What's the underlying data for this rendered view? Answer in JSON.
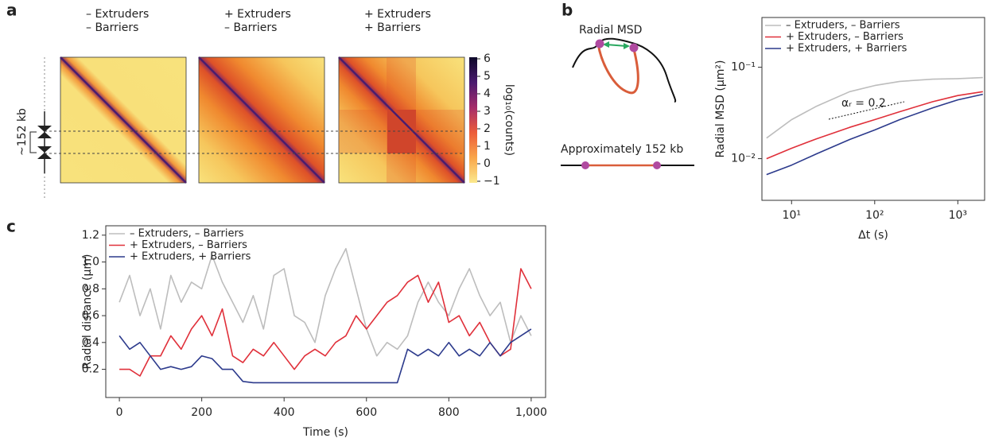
{
  "panel_labels": [
    "a",
    "b",
    "c"
  ],
  "diagram": {
    "title": "Radial MSD",
    "caption": "Approximately 152 kb"
  },
  "chart_data": [
    {
      "type": "heatmap",
      "maps": [
        {
          "title": [
            "– Extruders",
            "– Barriers"
          ]
        },
        {
          "title": [
            "+ Extruders",
            "– Barriers"
          ]
        },
        {
          "title": [
            "+ Extruders",
            "+ Barriers"
          ]
        }
      ],
      "side_label": "~152 kb",
      "colorbar": {
        "label": "log₁₀(counts)",
        "lim": [
          -1,
          6
        ],
        "ticks": [
          {
            "value": -1,
            "label": "−1"
          },
          0,
          1,
          2,
          3,
          4,
          5,
          6
        ]
      }
    },
    {
      "type": "line",
      "xscale": "log",
      "yscale": "log",
      "legend": "upper left",
      "xlabel": "Δt (s)",
      "ylabel": "Radial MSD (µm²)",
      "annotation": "αᵣ = 0.2",
      "x": [
        5,
        10,
        20,
        50,
        100,
        200,
        500,
        1000,
        2000
      ],
      "series": [
        {
          "name": "– Extruders, – Barriers",
          "color": "#bdbdbd",
          "values": [
            0.0168,
            0.0267,
            0.0375,
            0.054,
            0.063,
            0.07,
            0.074,
            0.075,
            0.077
          ]
        },
        {
          "name": "+ Extruders, – Barriers",
          "color": "#e0303a",
          "values": [
            0.01,
            0.013,
            0.0165,
            0.022,
            0.0267,
            0.0326,
            0.042,
            0.049,
            0.054
          ]
        },
        {
          "name": "+ Extruders, + Barriers",
          "color": "#2c3a8c",
          "values": [
            0.0067,
            0.0085,
            0.0113,
            0.0162,
            0.0206,
            0.0267,
            0.036,
            0.044,
            0.0506
          ]
        }
      ],
      "xlim": [
        4.4,
        2100
      ],
      "ylim": [
        0.0035,
        0.35
      ],
      "xticks": [
        {
          "value": 10,
          "label": "10¹"
        },
        {
          "value": 100,
          "label": "10²"
        },
        {
          "value": 1000,
          "label": "10³"
        }
      ],
      "yticks": [
        {
          "value": 0.01,
          "label": "10⁻²"
        },
        {
          "value": 0.1,
          "label": "10⁻¹"
        }
      ]
    },
    {
      "type": "line",
      "legend": "upper left",
      "xlabel": "Time (s)",
      "ylabel": "Radial distance (µm)",
      "x": [
        0,
        25,
        50,
        75,
        100,
        125,
        150,
        175,
        200,
        225,
        250,
        275,
        300,
        325,
        350,
        375,
        400,
        425,
        450,
        475,
        500,
        525,
        550,
        575,
        600,
        625,
        650,
        675,
        700,
        725,
        750,
        775,
        800,
        825,
        850,
        875,
        900,
        925,
        950,
        975,
        1000
      ],
      "series": [
        {
          "name": "– Extruders, – Barriers",
          "color": "#bdbdbd",
          "values": [
            0.7,
            0.9,
            0.6,
            0.8,
            0.5,
            0.9,
            0.7,
            0.85,
            0.8,
            1.05,
            0.85,
            0.7,
            0.55,
            0.75,
            0.5,
            0.9,
            0.95,
            0.6,
            0.55,
            0.4,
            0.75,
            0.95,
            1.1,
            0.8,
            0.5,
            0.3,
            0.4,
            0.35,
            0.45,
            0.7,
            0.85,
            0.7,
            0.6,
            0.8,
            0.95,
            0.75,
            0.6,
            0.7,
            0.4,
            0.6,
            0.45
          ]
        },
        {
          "name": "+ Extruders, – Barriers",
          "color": "#e0303a",
          "values": [
            0.2,
            0.2,
            0.15,
            0.3,
            0.3,
            0.45,
            0.35,
            0.5,
            0.6,
            0.45,
            0.65,
            0.3,
            0.25,
            0.35,
            0.3,
            0.4,
            0.3,
            0.2,
            0.3,
            0.35,
            0.3,
            0.4,
            0.45,
            0.6,
            0.5,
            0.6,
            0.7,
            0.75,
            0.85,
            0.9,
            0.7,
            0.85,
            0.55,
            0.6,
            0.45,
            0.55,
            0.4,
            0.3,
            0.35,
            0.95,
            0.8
          ]
        },
        {
          "name": "+ Extruders, + Barriers",
          "color": "#2c3a8c",
          "values": [
            0.45,
            0.35,
            0.4,
            0.3,
            0.2,
            0.22,
            0.2,
            0.22,
            0.3,
            0.28,
            0.2,
            0.2,
            0.11,
            0.1,
            0.1,
            0.1,
            0.1,
            0.1,
            0.1,
            0.1,
            0.1,
            0.1,
            0.1,
            0.1,
            0.1,
            0.1,
            0.1,
            0.1,
            0.35,
            0.3,
            0.35,
            0.3,
            0.4,
            0.3,
            0.35,
            0.3,
            0.4,
            0.3,
            0.4,
            0.45,
            0.5
          ]
        }
      ],
      "xlim": [
        -33,
        1035
      ],
      "ylim": [
        -0.01,
        1.27
      ],
      "xticks": [
        0,
        200,
        400,
        600,
        800,
        {
          "value": 1000,
          "label": "1,000"
        }
      ],
      "yticks": [
        0.2,
        0.4,
        0.6,
        0.8,
        {
          "value": 1,
          "label": "1.0"
        },
        1.2
      ]
    }
  ]
}
